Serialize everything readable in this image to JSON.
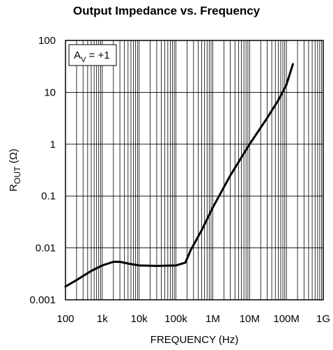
{
  "chart_data": {
    "type": "line",
    "title": "Output Impedance vs. Frequency",
    "xlabel": "FREQUENCY (Hz)",
    "ylabel": {
      "main": "R",
      "sub": "OUT",
      "rest": " (Ω)"
    },
    "x_scale": "log",
    "y_scale": "log",
    "xlim": [
      100,
      1000000000
    ],
    "ylim": [
      0.001,
      100
    ],
    "x_ticks": [
      {
        "value": 100,
        "label": "100"
      },
      {
        "value": 1000,
        "label": "1k"
      },
      {
        "value": 10000,
        "label": "10k"
      },
      {
        "value": 100000,
        "label": "100k"
      },
      {
        "value": 1000000,
        "label": "1M"
      },
      {
        "value": 10000000,
        "label": "10M"
      },
      {
        "value": 100000000,
        "label": "100M"
      },
      {
        "value": 1000000000,
        "label": "1G"
      }
    ],
    "y_ticks": [
      {
        "value": 0.001,
        "label": "0.001"
      },
      {
        "value": 0.01,
        "label": "0.01"
      },
      {
        "value": 0.1,
        "label": "0.1"
      },
      {
        "value": 1,
        "label": "1"
      },
      {
        "value": 10,
        "label": "10"
      },
      {
        "value": 100,
        "label": "100"
      }
    ],
    "grid": true,
    "annotation": {
      "main": "A",
      "sub": "V",
      "rest": " = +1"
    },
    "series": [
      {
        "color": "#000000",
        "x": [
          100,
          200,
          500,
          1000,
          2000,
          3000,
          5000,
          10000,
          30000,
          100000,
          180000,
          250000,
          500000,
          1000000,
          3000000,
          10000000,
          30000000,
          60000000,
          100000000,
          150000000
        ],
        "y": [
          0.0018,
          0.0024,
          0.0036,
          0.0046,
          0.0054,
          0.0054,
          0.005,
          0.0046,
          0.0045,
          0.0046,
          0.0052,
          0.009,
          0.022,
          0.06,
          0.25,
          1.0,
          3.2,
          7.0,
          14.0,
          35.0
        ]
      }
    ]
  }
}
